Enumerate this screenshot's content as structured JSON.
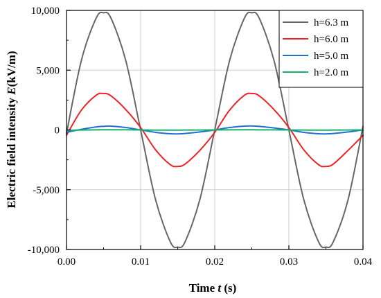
{
  "chart_data": {
    "type": "line",
    "xlabel": {
      "prefix": "Time ",
      "var": "t",
      "suffix": " (s)"
    },
    "ylabel": {
      "prefix": "Electric field intensity  ",
      "var": "E",
      "suffix": "(kV/m)"
    },
    "xlim": [
      0,
      0.04
    ],
    "ylim": [
      -10000,
      10000
    ],
    "x_ticks": [
      0,
      0.01,
      0.02,
      0.03,
      0.04
    ],
    "x_tick_labels": [
      "0.00",
      "0.01",
      "0.02",
      "0.03",
      "0.04"
    ],
    "y_ticks": [
      -10000,
      -5000,
      0,
      5000,
      10000
    ],
    "y_tick_labels": [
      "-10,000",
      "-5,000",
      "0",
      "5,000",
      "10,000"
    ],
    "grid": true,
    "legend_position": "top-right",
    "x": [
      0.0,
      0.002,
      0.004,
      0.005,
      0.006,
      0.008,
      0.01,
      0.012,
      0.014,
      0.015,
      0.016,
      0.018,
      0.02,
      0.022,
      0.024,
      0.025,
      0.026,
      0.028,
      0.03,
      0.032,
      0.034,
      0.035,
      0.036,
      0.038,
      0.04
    ],
    "series": [
      {
        "name": "h=6.3 m",
        "color": "#666666",
        "values": [
          -300,
          5800,
          9350,
          9800,
          9350,
          5800,
          0,
          -5800,
          -9350,
          -9800,
          -9350,
          -5800,
          0,
          5800,
          9350,
          9800,
          9350,
          5800,
          0,
          -5800,
          -9350,
          -9800,
          -9350,
          -5800,
          300
        ]
      },
      {
        "name": "h=6.0 m",
        "color": "#ee2222",
        "values": [
          -450,
          1650,
          2900,
          3050,
          2850,
          1700,
          200,
          -1650,
          -2900,
          -3050,
          -2850,
          -1700,
          -200,
          1650,
          2900,
          3050,
          2850,
          1700,
          200,
          -1650,
          -2900,
          -3050,
          -2850,
          -1700,
          -450
        ]
      },
      {
        "name": "h=5.0 m",
        "color": "#1f6fd0",
        "values": [
          -200,
          50,
          250,
          300,
          320,
          200,
          0,
          -200,
          -320,
          -330,
          -300,
          -170,
          0,
          200,
          320,
          330,
          300,
          170,
          0,
          -200,
          -320,
          -330,
          -300,
          -170,
          0
        ]
      },
      {
        "name": "h=2.0 m",
        "color": "#18b06a",
        "values": [
          -30,
          -10,
          10,
          15,
          18,
          12,
          0,
          -12,
          -18,
          -15,
          -10,
          -5,
          0,
          10,
          18,
          15,
          10,
          5,
          0,
          -10,
          -18,
          -15,
          -10,
          -5,
          0
        ]
      }
    ]
  }
}
